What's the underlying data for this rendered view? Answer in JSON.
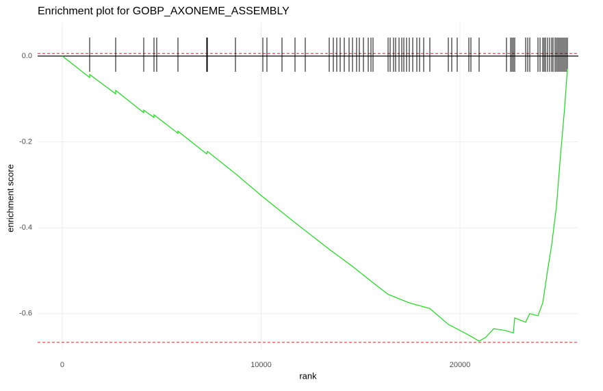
{
  "chart_data": {
    "type": "enrichment",
    "title": "Enrichment plot for GOBP_AXONEME_ASSEMBLY",
    "x_label": "rank",
    "y_label": "enrichment score",
    "xlim": [
      -1239,
      25955
    ],
    "ylim": [
      -0.6815,
      0.078
    ],
    "xticks": [
      0,
      10000,
      20000
    ],
    "yticks": [
      {
        "value": 0,
        "label": "0.0"
      },
      -0.2,
      -0.4,
      -0.6
    ],
    "grid": true,
    "line": {
      "color": "#19d819",
      "x": [
        0,
        1377,
        1377,
        2685,
        2685,
        4096,
        4096,
        4613,
        4613,
        5818,
        5818,
        7263,
        7298,
        8709,
        10086,
        11704,
        13425,
        14596,
        15628,
        16386,
        17453,
        18485,
        19415,
        20448,
        20964,
        21300,
        21700,
        22341,
        22685,
        22754,
        23305,
        23511,
        23924,
        24165,
        24406,
        24613,
        24854,
        25060,
        25267,
        25404
      ],
      "y": [
        0,
        -0.05,
        -0.043,
        -0.088,
        -0.08,
        -0.132,
        -0.126,
        -0.143,
        -0.137,
        -0.18,
        -0.175,
        -0.228,
        -0.222,
        -0.274,
        -0.328,
        -0.388,
        -0.45,
        -0.49,
        -0.528,
        -0.555,
        -0.575,
        -0.588,
        -0.625,
        -0.65,
        -0.664,
        -0.655,
        -0.635,
        -0.64,
        -0.645,
        -0.61,
        -0.62,
        -0.6,
        -0.605,
        -0.575,
        -0.5,
        -0.44,
        -0.35,
        -0.23,
        -0.12,
        -0.03
      ]
    },
    "hits": [
      1377,
      2685,
      4096,
      4613,
      4750,
      5818,
      7263,
      7298,
      8709,
      10086,
      10293,
      11050,
      11704,
      12220,
      13425,
      13632,
      13804,
      13976,
      14182,
      14423,
      14596,
      14802,
      14940,
      15146,
      15387,
      15525,
      15628,
      16386,
      16489,
      16661,
      16764,
      16936,
      17074,
      17177,
      17315,
      17453,
      17625,
      17831,
      17969,
      18176,
      18485,
      19415,
      19587,
      19862,
      20448,
      20551,
      20964,
      22341,
      22547,
      22616,
      22685,
      22754,
      23305,
      23408,
      23511,
      23924,
      24028,
      24165,
      24234,
      24303,
      24406,
      24509,
      24613,
      24682,
      24785,
      24854,
      24923,
      24991,
      25060,
      25129,
      25198,
      25267,
      25336,
      25404
    ],
    "zero_line": 0,
    "hlines": [
      {
        "value": 0.006,
        "color": "#cc2222",
        "dash": true
      },
      {
        "value": -0.667,
        "color": "#cc2222",
        "dash": true
      }
    ]
  }
}
